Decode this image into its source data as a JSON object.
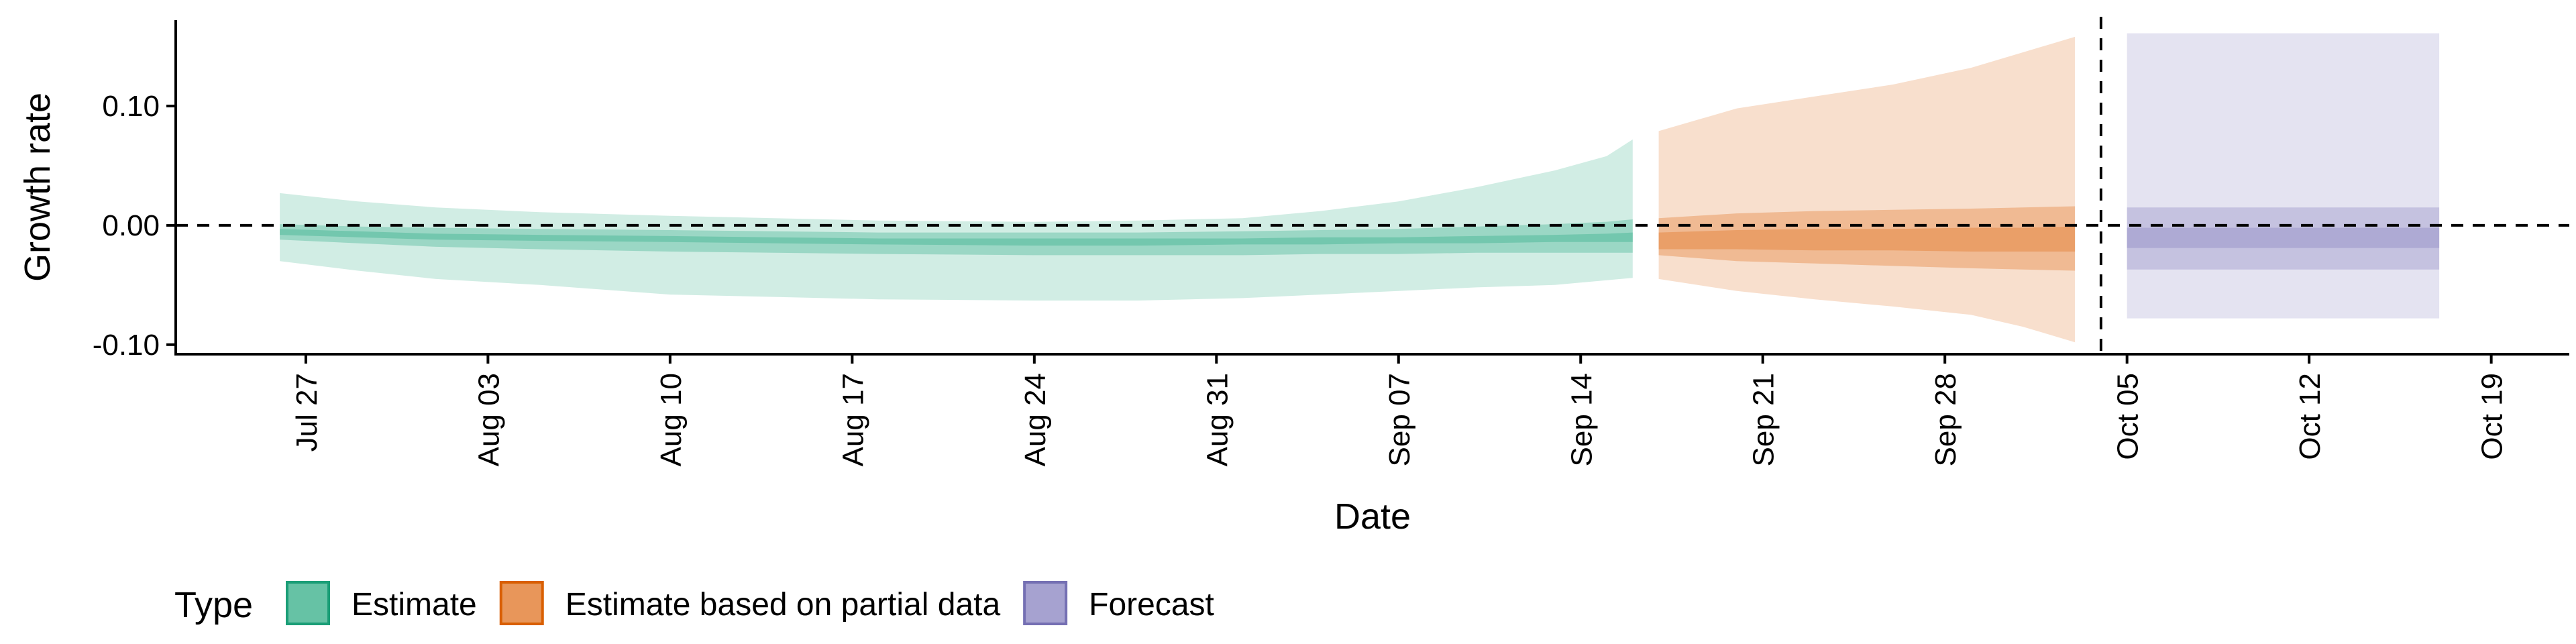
{
  "chart_data": {
    "type": "area",
    "title": "",
    "xlabel": "Date",
    "ylabel": "Growth rate",
    "yticks": [
      {
        "value": 0.1,
        "label": "0.10"
      },
      {
        "value": 0.0,
        "label": "0.00"
      },
      {
        "value": -0.1,
        "label": "-0.10"
      }
    ],
    "xticks": [
      {
        "date": "2020-07-27",
        "label": "Jul 27"
      },
      {
        "date": "2020-08-03",
        "label": "Aug 03"
      },
      {
        "date": "2020-08-10",
        "label": "Aug 10"
      },
      {
        "date": "2020-08-17",
        "label": "Aug 17"
      },
      {
        "date": "2020-08-24",
        "label": "Aug 24"
      },
      {
        "date": "2020-08-31",
        "label": "Aug 31"
      },
      {
        "date": "2020-09-07",
        "label": "Sep 07"
      },
      {
        "date": "2020-09-14",
        "label": "Sep 14"
      },
      {
        "date": "2020-09-21",
        "label": "Sep 21"
      },
      {
        "date": "2020-09-28",
        "label": "Sep 28"
      },
      {
        "date": "2020-10-05",
        "label": "Oct 05"
      },
      {
        "date": "2020-10-12",
        "label": "Oct 12"
      },
      {
        "date": "2020-10-19",
        "label": "Oct 19"
      }
    ],
    "xlim": [
      "2020-07-22",
      "2020-10-22"
    ],
    "ylim": [
      -0.108,
      0.172
    ],
    "reference_lines": {
      "y": 0.0,
      "x": "2020-10-04"
    },
    "grid": false,
    "legend": {
      "title": "Type",
      "position": "bottom",
      "entries": [
        {
          "label": "Estimate",
          "color": "#66c2a5",
          "border": "#1b9e77"
        },
        {
          "label": "Estimate based on partial data",
          "color": "#e8965a",
          "border": "#d95f02"
        },
        {
          "label": "Forecast",
          "color": "#a6a2d0",
          "border": "#7570b3"
        }
      ]
    },
    "series": [
      {
        "name": "Estimate",
        "color": "#66c2a5",
        "x": [
          "2020-07-26",
          "2020-07-29",
          "2020-08-01",
          "2020-08-05",
          "2020-08-10",
          "2020-08-14",
          "2020-08-18",
          "2020-08-24",
          "2020-08-28",
          "2020-09-01",
          "2020-09-04",
          "2020-09-07",
          "2020-09-10",
          "2020-09-13",
          "2020-09-15",
          "2020-09-16"
        ],
        "lower90": [
          -0.03,
          -0.038,
          -0.045,
          -0.05,
          -0.058,
          -0.06,
          -0.062,
          -0.063,
          -0.063,
          -0.061,
          -0.058,
          -0.055,
          -0.052,
          -0.05,
          -0.046,
          -0.044
        ],
        "upper90": [
          0.027,
          0.02,
          0.015,
          0.011,
          0.008,
          0.006,
          0.004,
          0.003,
          0.004,
          0.006,
          0.012,
          0.02,
          0.032,
          0.046,
          0.058,
          0.072
        ],
        "lower50": [
          -0.012,
          -0.015,
          -0.018,
          -0.02,
          -0.022,
          -0.023,
          -0.024,
          -0.025,
          -0.025,
          -0.025,
          -0.024,
          -0.024,
          -0.023,
          -0.023,
          -0.023,
          -0.023
        ],
        "upper50": [
          0.001,
          -0.001,
          -0.002,
          -0.003,
          -0.004,
          -0.005,
          -0.006,
          -0.006,
          -0.006,
          -0.005,
          -0.004,
          -0.003,
          -0.001,
          0.001,
          0.003,
          0.005
        ],
        "lower20": [
          -0.008,
          -0.01,
          -0.012,
          -0.013,
          -0.014,
          -0.015,
          -0.016,
          -0.017,
          -0.017,
          -0.016,
          -0.016,
          -0.015,
          -0.015,
          -0.014,
          -0.014,
          -0.014
        ],
        "upper20": [
          -0.003,
          -0.005,
          -0.007,
          -0.008,
          -0.009,
          -0.01,
          -0.011,
          -0.011,
          -0.011,
          -0.011,
          -0.01,
          -0.01,
          -0.009,
          -0.008,
          -0.007,
          -0.006
        ]
      },
      {
        "name": "Estimate based on partial data",
        "color": "#e8965a",
        "x": [
          "2020-09-17",
          "2020-09-20",
          "2020-09-23",
          "2020-09-26",
          "2020-09-29",
          "2020-10-01",
          "2020-10-03"
        ],
        "lower90": [
          -0.045,
          -0.055,
          -0.062,
          -0.068,
          -0.075,
          -0.085,
          -0.098
        ],
        "upper90": [
          0.079,
          0.098,
          0.108,
          0.118,
          0.132,
          0.145,
          0.158
        ],
        "lower50": [
          -0.025,
          -0.03,
          -0.032,
          -0.034,
          -0.036,
          -0.037,
          -0.038
        ],
        "upper50": [
          0.006,
          0.01,
          0.012,
          0.013,
          0.014,
          0.015,
          0.016
        ],
        "lower20": [
          -0.02,
          -0.02,
          -0.021,
          -0.021,
          -0.022,
          -0.022,
          -0.022
        ],
        "upper20": [
          -0.006,
          -0.004,
          -0.003,
          -0.003,
          -0.002,
          -0.002,
          -0.001
        ]
      },
      {
        "name": "Forecast",
        "color": "#a6a2d0",
        "x": [
          "2020-10-05",
          "2020-10-17"
        ],
        "lower90": [
          -0.078,
          -0.078
        ],
        "upper90": [
          0.161,
          0.161
        ],
        "lower50": [
          -0.037,
          -0.037
        ],
        "upper50": [
          0.015,
          0.015
        ],
        "lower20": [
          -0.019,
          -0.019
        ],
        "upper20": [
          -0.002,
          -0.002
        ]
      }
    ]
  }
}
